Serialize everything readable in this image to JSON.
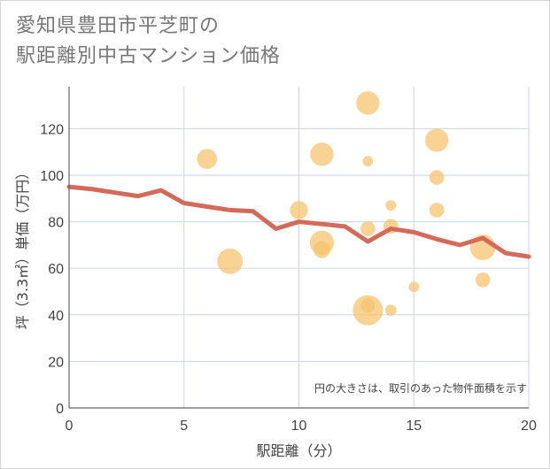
{
  "title": {
    "line1": "愛知県豊田市平芝町の",
    "line2": "駅距離別中古マンション価格"
  },
  "chart_data": {
    "type": "scatter",
    "xlabel": "駅距離（分）",
    "ylabel": "坪（3.3㎡）単価（万円）",
    "xlim": [
      0,
      20
    ],
    "ylim": [
      0,
      138
    ],
    "xticks": [
      0,
      5,
      10,
      15,
      20
    ],
    "yticks": [
      0,
      20,
      40,
      60,
      80,
      100,
      120
    ],
    "grid": true,
    "note": "円の大きさは、取引のあった物件面積を示す",
    "colors": {
      "bubble": "#f5c26b",
      "line": "#d46b5a",
      "grid": "#c9d6e6",
      "axis": "#666666"
    },
    "scatter_points": [
      {
        "x": 6,
        "y": 107,
        "size": 2.2
      },
      {
        "x": 7,
        "y": 63,
        "size": 3.6
      },
      {
        "x": 10,
        "y": 85,
        "size": 1.8
      },
      {
        "x": 11,
        "y": 109,
        "size": 3.0
      },
      {
        "x": 11,
        "y": 71,
        "size": 3.2
      },
      {
        "x": 11,
        "y": 68,
        "size": 1.6
      },
      {
        "x": 13,
        "y": 131,
        "size": 3.0
      },
      {
        "x": 13,
        "y": 106,
        "size": 0.6
      },
      {
        "x": 13,
        "y": 77,
        "size": 1.2
      },
      {
        "x": 13,
        "y": 42,
        "size": 5.0
      },
      {
        "x": 13,
        "y": 44,
        "size": 1.1
      },
      {
        "x": 14,
        "y": 87,
        "size": 0.6
      },
      {
        "x": 14,
        "y": 78,
        "size": 1.2
      },
      {
        "x": 14,
        "y": 42,
        "size": 0.7
      },
      {
        "x": 15,
        "y": 52,
        "size": 0.6
      },
      {
        "x": 16,
        "y": 115,
        "size": 3.0
      },
      {
        "x": 16,
        "y": 99,
        "size": 1.2
      },
      {
        "x": 16,
        "y": 85,
        "size": 1.2
      },
      {
        "x": 18,
        "y": 69,
        "size": 3.6
      },
      {
        "x": 18,
        "y": 55,
        "size": 1.2
      }
    ],
    "line": {
      "x": [
        0,
        1,
        2,
        3,
        4,
        5,
        6,
        7,
        8,
        9,
        10,
        11,
        12,
        13,
        14,
        15,
        16,
        17,
        18,
        19,
        20
      ],
      "y": [
        95,
        94,
        92.5,
        91,
        93.5,
        88,
        86.5,
        85,
        84.5,
        77,
        80,
        79,
        78,
        71.5,
        77,
        75.5,
        72.5,
        70,
        73,
        66.5,
        65
      ]
    }
  }
}
